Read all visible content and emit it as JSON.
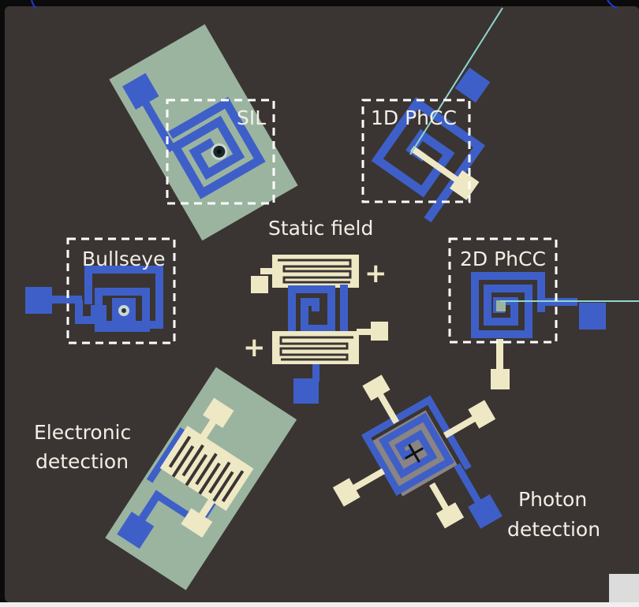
{
  "labels": {
    "sil": "SIL",
    "phcc_1d": "1D PhCC",
    "static_field": "Static field",
    "bullseye": "Bullseye",
    "phcc_2d": "2D PhCC",
    "electronic_detection_line1": "Electronic",
    "electronic_detection_line2": "detection",
    "photon_detection_line1": "Photon",
    "photon_detection_line2": "detection",
    "plus_upper": "+",
    "plus_lower": "+"
  },
  "colors": {
    "frame": "#0a0a0a",
    "background": "#3a3532",
    "metal": "#3f5fc8",
    "electrode": "#efe8c4",
    "substrate": "#9bb4a0",
    "fiber": "#8fd6cf",
    "membrane": "#8a8483",
    "dashed_box": "#ffffff",
    "text": "#f2efe6"
  },
  "icons": {
    "corner_button": "square-button-icon"
  }
}
